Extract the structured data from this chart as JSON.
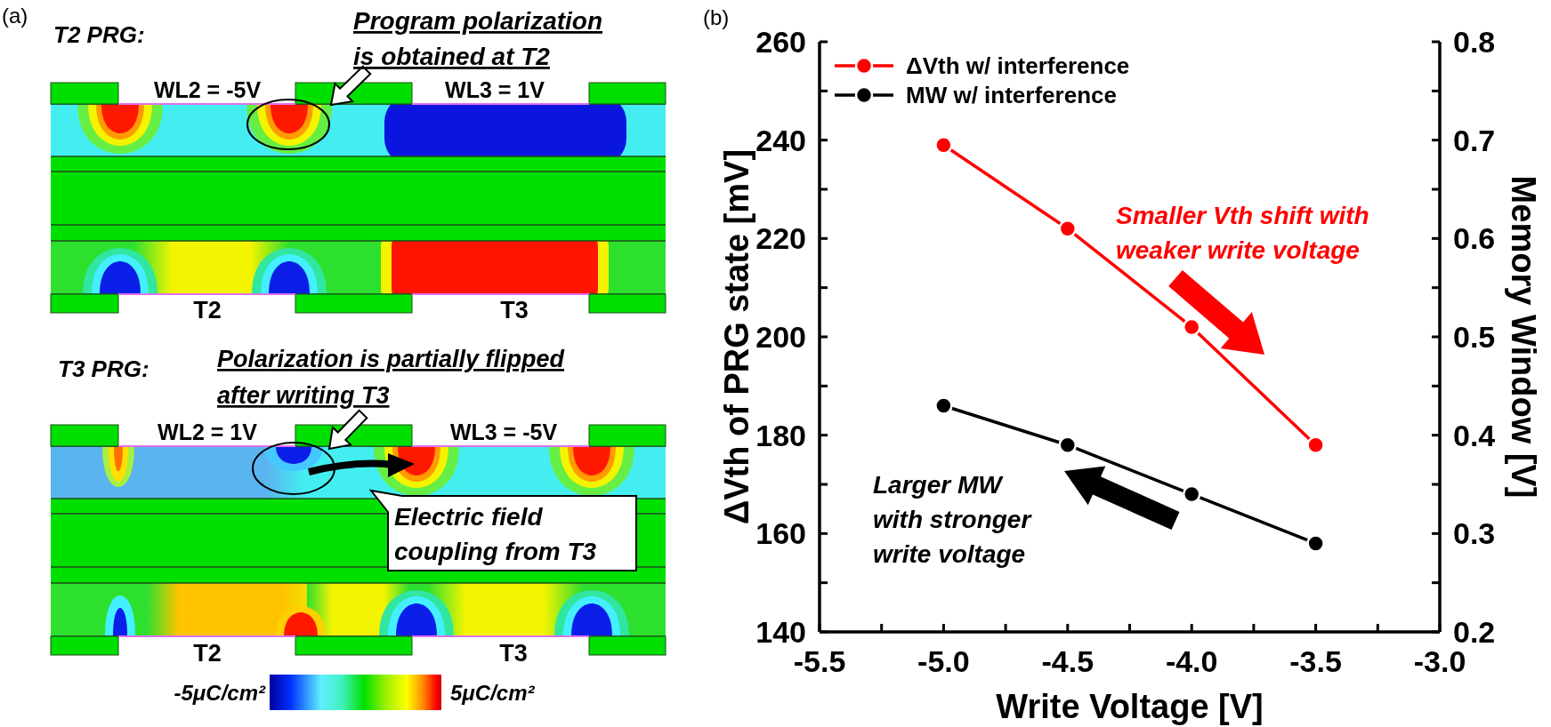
{
  "chart_data": [
    {
      "type": "other",
      "title": "(a)",
      "annotations": [
        "T2 PRG:",
        "Program polarization\nis obtained at T2",
        "WL2 = -5V",
        "WL3 = 1V",
        "T2",
        "T3",
        "T3 PRG:",
        "Polarization is partially flipped\nafter writing T3",
        "WL2 = 1V",
        "WL3 = -5V",
        "Electric field\ncoupling from T3",
        "T2",
        "T3",
        "-5μC/cm²",
        "5μC/cm²"
      ]
    },
    {
      "type": "line",
      "title": "(b)",
      "xlabel": "Write Voltage [V]",
      "ylabel": "ΔVth of PRG state [mV]",
      "y2label": "Memory Window [V]",
      "x": [
        -5.0,
        -4.5,
        -4.0,
        -3.5
      ],
      "series": [
        {
          "name": "ΔVth w/ interference",
          "color": "#ff0000",
          "values": [
            239,
            222,
            202,
            178
          ]
        },
        {
          "name": "MW w/ interference",
          "color": "#000000",
          "axis": "y2",
          "values": [
            0.43,
            0.39,
            0.34,
            0.29
          ]
        }
      ],
      "xlim": [
        -5.5,
        -3.0
      ],
      "xticks": [
        -5.5,
        {
          "value": -5.25,
          "label": null
        },
        {
          "value": -5.0,
          "label": "-5.0"
        },
        {
          "value": -4.75,
          "label": null
        },
        -4.5,
        {
          "value": -4.25,
          "label": null
        },
        {
          "value": -4.0,
          "label": "-4.0"
        },
        {
          "value": -3.75,
          "label": null
        },
        -3.5,
        {
          "value": -3.25,
          "label": null
        },
        {
          "value": -3.0,
          "label": "-3.0"
        }
      ],
      "ylim": [
        140,
        260
      ],
      "yticks": [
        140,
        {
          "value": 150,
          "label": null
        },
        160,
        {
          "value": 170,
          "label": null
        },
        180,
        {
          "value": 190,
          "label": null
        },
        200,
        {
          "value": 210,
          "label": null
        },
        220,
        {
          "value": 230,
          "label": null
        },
        240,
        {
          "value": 250,
          "label": null
        },
        260
      ],
      "y2lim": [
        0.2,
        0.8
      ],
      "y2ticks": [
        0.2,
        {
          "value": 0.25,
          "label": null
        },
        0.3,
        {
          "value": 0.35,
          "label": null
        },
        0.4,
        {
          "value": 0.45,
          "label": null
        },
        0.5,
        {
          "value": 0.55,
          "label": null
        },
        0.6,
        {
          "value": 0.65,
          "label": null
        },
        0.7,
        {
          "value": 0.75,
          "label": null
        },
        0.8
      ],
      "legend": "top left",
      "marker": "circle",
      "line_style": "solid",
      "annotations": [
        "Smaller Vth shift with\nweaker write voltage",
        "Larger MW\nwith stronger\nwrite voltage"
      ]
    }
  ]
}
